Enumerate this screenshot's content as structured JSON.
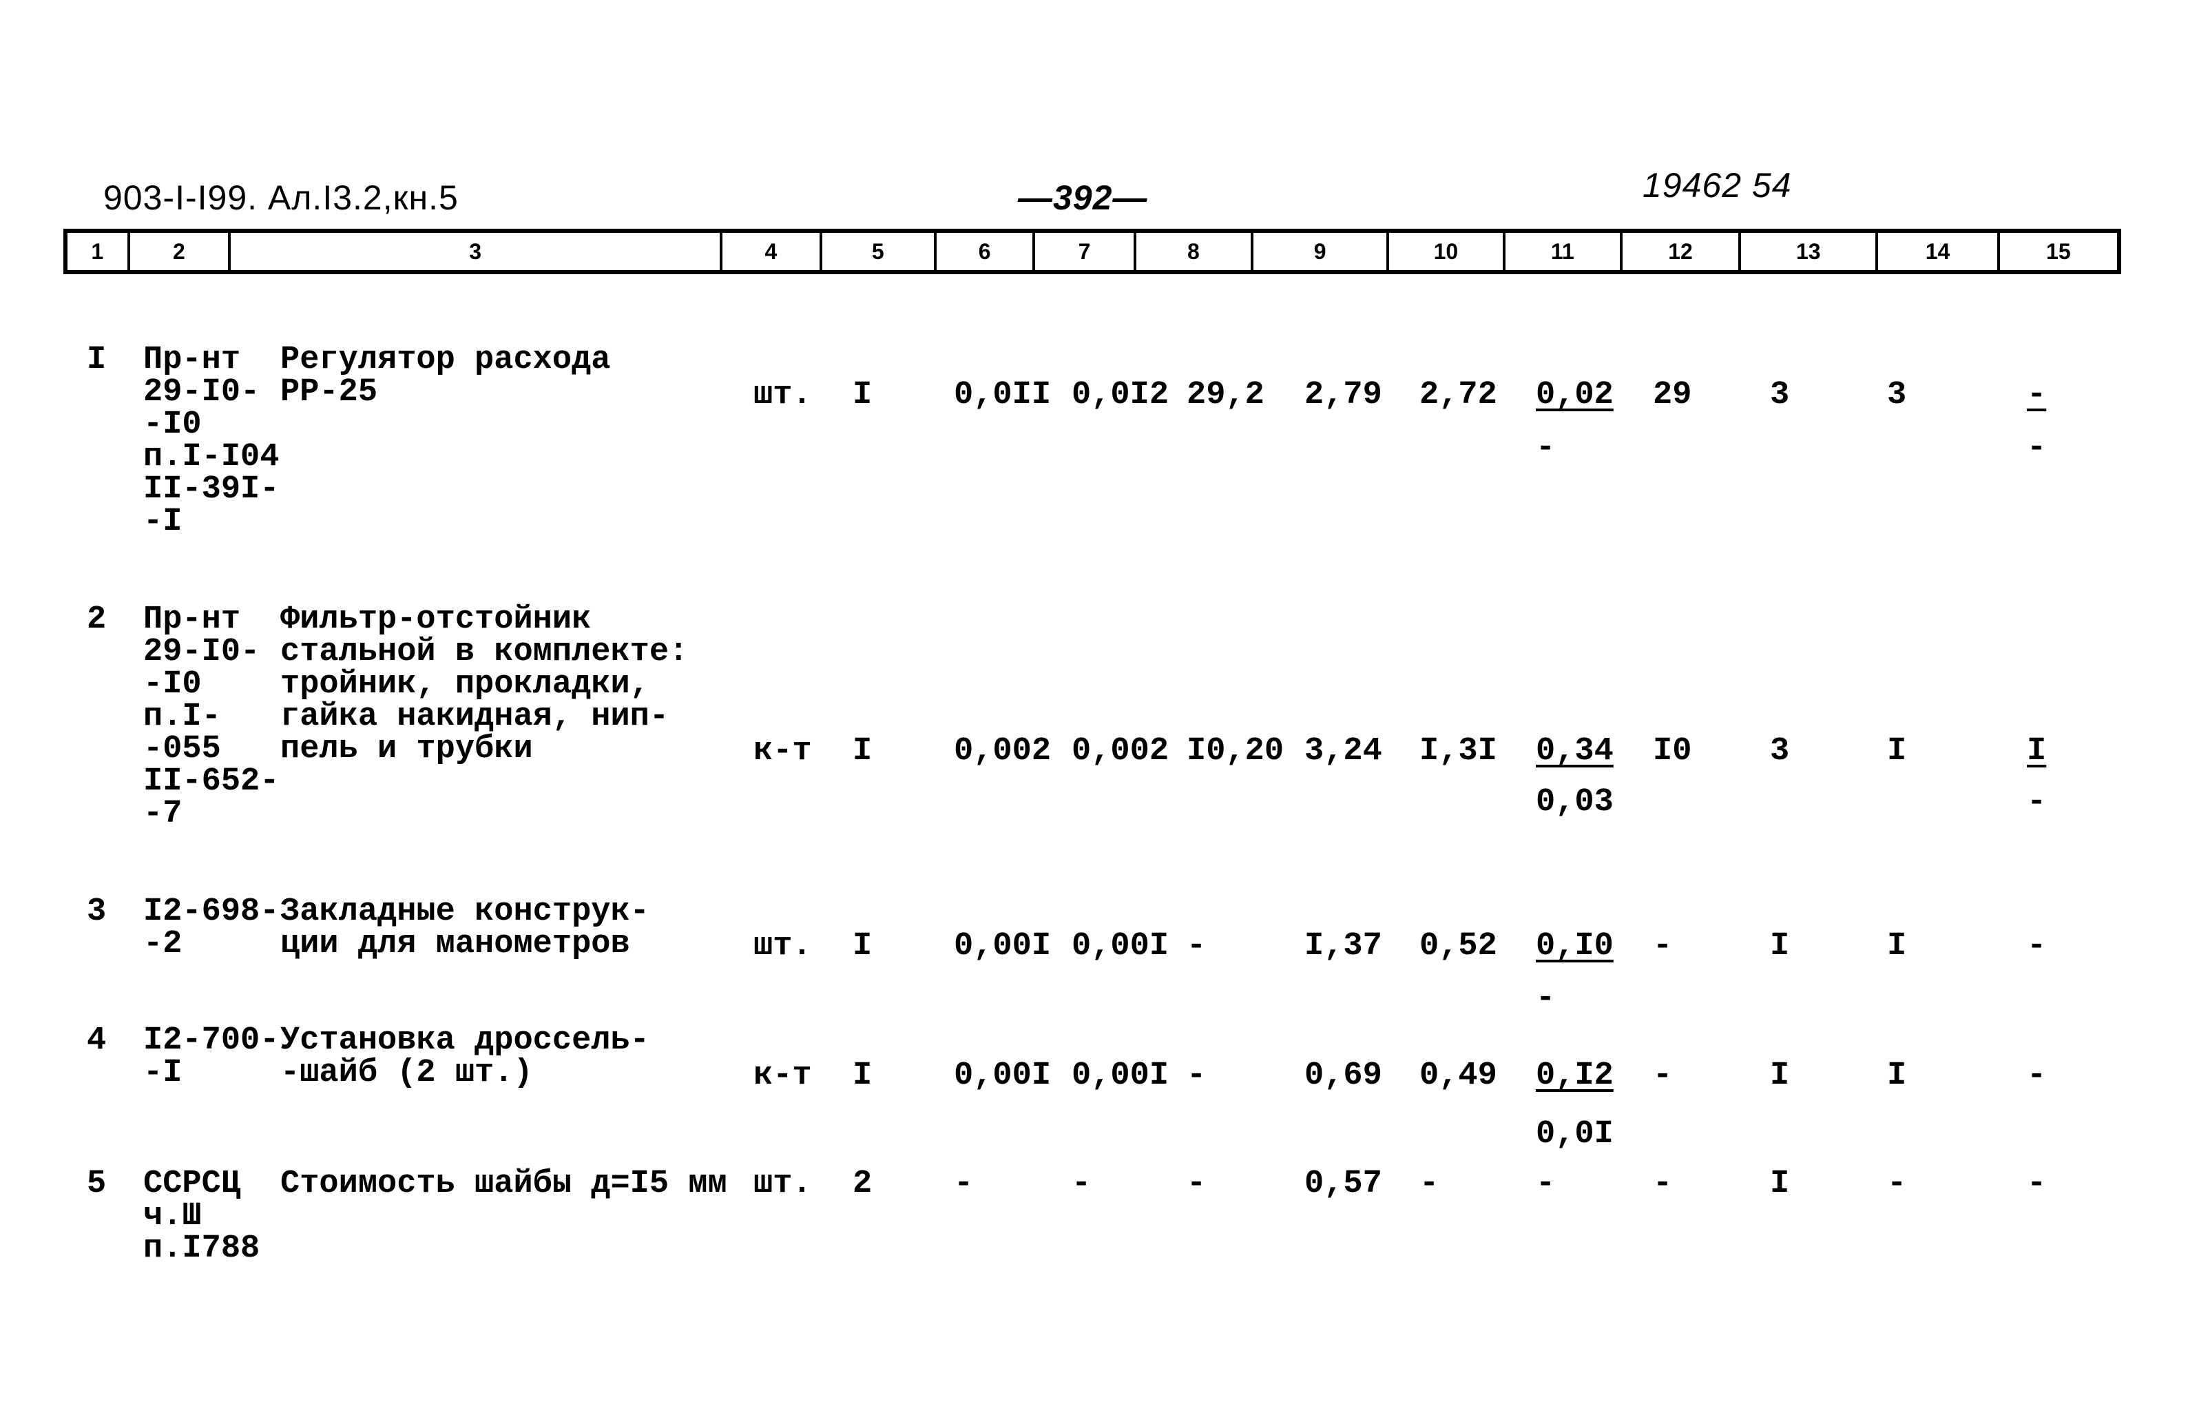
{
  "header": {
    "doc_code": "903-I-I99. Ал.I3.2,кн.5",
    "page_number": "—392—",
    "stamp": "19462 54"
  },
  "columns": [
    "1",
    "2",
    "3",
    "4",
    "5",
    "6",
    "7",
    "8",
    "9",
    "10",
    "11",
    "12",
    "13",
    "14",
    "15"
  ],
  "rows": [
    {
      "num": "I",
      "ref": [
        "Пр-нт",
        "29-I0-",
        "-I0",
        "п.I-I04",
        "II-39I-",
        "-I"
      ],
      "name": [
        "Регулятор расхода",
        "РР-25"
      ],
      "unit": "шт.",
      "c5": "I",
      "c6": "0,0II",
      "c7": "0,0I2",
      "c8": "29,2",
      "c9": "2,79",
      "c10": "2,72",
      "c11": {
        "top": "0,02",
        "bottom": "-"
      },
      "c12": "29",
      "c13": "3",
      "c14": "3",
      "c15": {
        "top": "-",
        "bottom": "-"
      }
    },
    {
      "num": "2",
      "ref": [
        "Пр-нт",
        "29-I0-",
        "-I0",
        "п.I-",
        "-055",
        "II-652-",
        "-7"
      ],
      "name": [
        "Фильтр-отстойник",
        "стальной в комплекте:",
        "тройник, прокладки,",
        "гайка накидная, нип-",
        "пель и трубки"
      ],
      "unit": "к-т",
      "c5": "I",
      "c6": "0,002",
      "c7": "0,002",
      "c8": "I0,20",
      "c9": "3,24",
      "c10": "I,3I",
      "c11": {
        "top": "0,34",
        "bottom": "0,03"
      },
      "c12": "I0",
      "c13": "3",
      "c14": "I",
      "c15": {
        "top": "I",
        "bottom": "-"
      }
    },
    {
      "num": "3",
      "ref": [
        "I2-698-",
        "-2"
      ],
      "name": [
        "Закладные конструк-",
        "ции для манометров"
      ],
      "unit": "шт.",
      "c5": "I",
      "c6": "0,00I",
      "c7": "0,00I",
      "c8": "-",
      "c9": "I,37",
      "c10": "0,52",
      "c11": {
        "top": "0,I0",
        "bottom": "-"
      },
      "c12": "-",
      "c13": "I",
      "c14": "I",
      "c15": {
        "top": "-",
        "bottom": ""
      }
    },
    {
      "num": "4",
      "ref": [
        "I2-700-",
        "-I"
      ],
      "name": [
        "Установка дроссель-",
        "-шайб (2 шт.)"
      ],
      "unit": "к-т",
      "c5": "I",
      "c6": "0,00I",
      "c7": "0,00I",
      "c8": "-",
      "c9": "0,69",
      "c10": "0,49",
      "c11": {
        "top": "0,I2",
        "bottom": "0,0I"
      },
      "c12": "-",
      "c13": "I",
      "c14": "I",
      "c15": {
        "top": "-",
        "bottom": ""
      }
    },
    {
      "num": "5",
      "ref": [
        "ССРСЦ",
        "ч.Ш",
        "п.I788"
      ],
      "name": [
        "Стоимость шайбы д=I5 мм"
      ],
      "unit": "шт.",
      "c5": "2",
      "c6": "-",
      "c7": "-",
      "c8": "-",
      "c9": "0,57",
      "c10": "-",
      "c11": {
        "top": "-",
        "bottom": ""
      },
      "c12": "-",
      "c13": "I",
      "c14": "-",
      "c15": {
        "top": "-",
        "bottom": ""
      }
    }
  ]
}
